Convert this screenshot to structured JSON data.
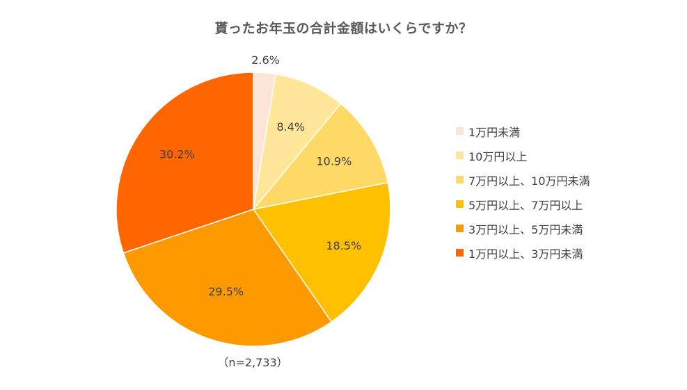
{
  "chart_data": {
    "type": "pie",
    "title": "貰ったお年玉の合計金額はいくらですか？",
    "note": "（n=2,733）",
    "unit": "%",
    "categories": [
      "1万円未満",
      "10万円以上",
      "7万円以上、10万円未満",
      "5万円以上、7万円以上",
      "3万円以上、5万円未満",
      "1万円以上、3万円未満"
    ],
    "values": [
      2.6,
      8.4,
      10.9,
      18.5,
      29.5,
      30.2
    ],
    "value_labels": [
      "2.6%",
      "8.4%",
      "10.9%",
      "18.5%",
      "29.5%",
      "30.2%"
    ],
    "colors": [
      "#FCE4D6",
      "#FFE699",
      "#FFD966",
      "#FFC000",
      "#FF9900",
      "#FF6600"
    ],
    "start_angle": "12 o'clock",
    "direction": "clockwise",
    "legend_position": "right"
  }
}
